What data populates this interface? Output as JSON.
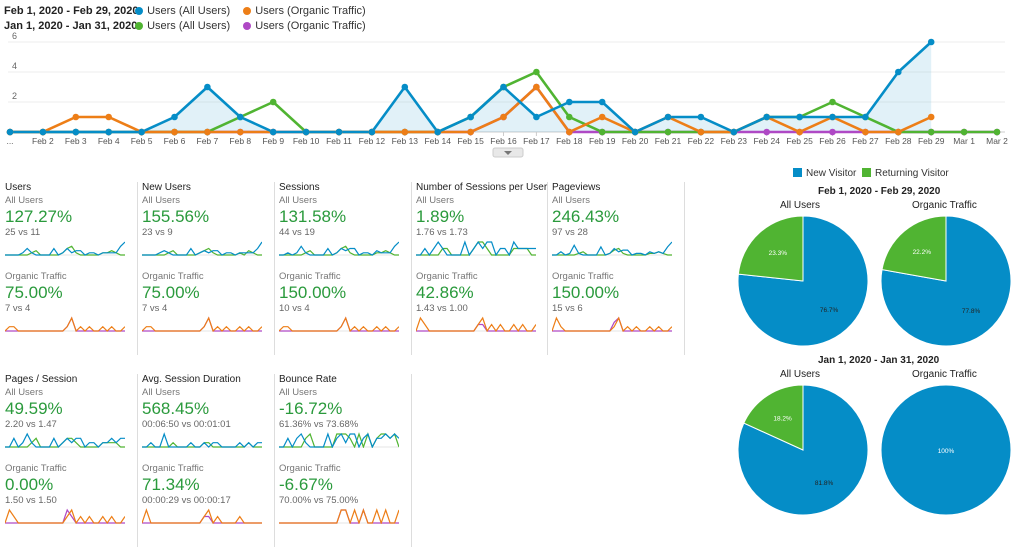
{
  "colors": {
    "blue": "#058dc7",
    "orange": "#ed7e17",
    "green": "#50b432",
    "purple": "#af49c5",
    "new_visitor": "#058dc7",
    "returning_visitor": "#50b432",
    "metric_value": "#2a9a3c"
  },
  "legend": [
    {
      "range": "Feb 1, 2020 - Feb 29, 2020:",
      "items": [
        {
          "label": "Users (All Users)",
          "color": "#058dc7"
        },
        {
          "label": "Users (Organic Traffic)",
          "color": "#ed7e17"
        }
      ]
    },
    {
      "range": "Jan 1, 2020 - Jan 31, 2020:",
      "items": [
        {
          "label": "Users (All Users)",
          "color": "#50b432"
        },
        {
          "label": "Users (Organic Traffic)",
          "color": "#af49c5"
        }
      ]
    }
  ],
  "chart_data": {
    "type": "line",
    "x": [
      "...",
      "Feb 2",
      "Feb 3",
      "Feb 4",
      "Feb 5",
      "Feb 6",
      "Feb 7",
      "Feb 8",
      "Feb 9",
      "Feb 10",
      "Feb 11",
      "Feb 12",
      "Feb 13",
      "Feb 14",
      "Feb 15",
      "Feb 16",
      "Feb 17",
      "Feb 18",
      "Feb 19",
      "Feb 20",
      "Feb 21",
      "Feb 22",
      "Feb 23",
      "Feb 24",
      "Feb 25",
      "Feb 26",
      "Feb 27",
      "Feb 28",
      "Feb 29",
      "Mar 1",
      "Mar 2"
    ],
    "y_ticks": [
      "6",
      "4",
      "2"
    ],
    "ylim": [
      0,
      6
    ],
    "series": [
      {
        "name": "Users (All Users)",
        "color": "#058dc7",
        "area": true,
        "values": [
          0,
          0,
          0,
          0,
          0,
          1,
          3,
          1,
          0,
          0,
          0,
          0,
          3,
          0,
          1,
          3,
          1,
          2,
          2,
          0,
          1,
          1,
          0,
          1,
          1,
          1,
          1,
          4,
          6,
          null,
          null
        ]
      },
      {
        "name": "Users (Organic Traffic)",
        "color": "#ed7e17",
        "values": [
          0,
          0,
          1,
          1,
          0,
          0,
          0,
          0,
          0,
          0,
          0,
          0,
          0,
          0,
          0,
          1,
          3,
          0,
          1,
          0,
          1,
          0,
          0,
          1,
          0,
          1,
          0,
          0,
          1,
          null,
          null
        ]
      },
      {
        "name": "Users (All Users)",
        "color": "#50b432",
        "values": [
          0,
          0,
          0,
          0,
          0,
          0,
          0,
          1,
          2,
          0,
          0,
          0,
          0,
          0,
          1,
          3,
          4,
          1,
          0,
          0,
          0,
          0,
          0,
          1,
          1,
          2,
          1,
          0,
          0,
          0,
          0
        ]
      },
      {
        "name": "Users (Organic Traffic)",
        "color": "#af49c5",
        "values": [
          0,
          0,
          0,
          0,
          0,
          0,
          0,
          0,
          0,
          0,
          0,
          0,
          0,
          0,
          0,
          1,
          3,
          0,
          0,
          0,
          0,
          0,
          0,
          0,
          0,
          0,
          0,
          0,
          0,
          0,
          0
        ]
      }
    ]
  },
  "metrics": [
    {
      "title": "Users",
      "all_seg": "All Users",
      "all_value": "127.27%",
      "all_cmp": "25 vs 11",
      "org_seg": "Organic Traffic",
      "org_value": "75.00%",
      "org_cmp": "7 vs 4",
      "spark_all": [
        [
          0,
          0,
          0,
          0,
          1,
          3,
          1,
          0,
          0,
          0,
          0,
          3,
          0,
          1,
          3,
          1,
          2,
          2,
          0,
          1,
          1,
          0,
          1,
          1,
          1,
          1,
          4,
          6
        ],
        [
          0,
          0,
          0,
          0,
          0,
          0,
          1,
          2,
          0,
          0,
          0,
          0,
          0,
          1,
          3,
          4,
          1,
          0,
          0,
          0,
          0,
          0,
          1,
          1,
          2,
          1,
          0,
          0
        ]
      ],
      "spark_org": [
        [
          0,
          1,
          1,
          0,
          0,
          0,
          0,
          0,
          0,
          0,
          0,
          0,
          0,
          0,
          1,
          3,
          0,
          1,
          0,
          1,
          0,
          0,
          1,
          0,
          1,
          0,
          0,
          1
        ],
        [
          0,
          0,
          0,
          0,
          0,
          0,
          0,
          0,
          0,
          0,
          0,
          0,
          0,
          0,
          1,
          3,
          0,
          0,
          0,
          0,
          0,
          0,
          0,
          0,
          0,
          0,
          0,
          0
        ]
      ]
    },
    {
      "title": "New Users",
      "all_seg": "All Users",
      "all_value": "155.56%",
      "all_cmp": "23 vs 9",
      "org_seg": "Organic Traffic",
      "org_value": "75.00%",
      "org_cmp": "7 vs 4",
      "spark_all": [
        [
          0,
          0,
          0,
          0,
          1,
          2,
          1,
          0,
          0,
          0,
          0,
          3,
          0,
          1,
          2,
          1,
          2,
          2,
          0,
          1,
          1,
          0,
          1,
          1,
          1,
          1,
          3,
          6
        ],
        [
          0,
          0,
          0,
          0,
          0,
          0,
          1,
          2,
          0,
          0,
          0,
          0,
          0,
          1,
          2,
          3,
          1,
          0,
          0,
          0,
          0,
          0,
          1,
          0,
          2,
          1,
          0,
          0
        ]
      ],
      "spark_org": [
        [
          0,
          1,
          1,
          0,
          0,
          0,
          0,
          0,
          0,
          0,
          0,
          0,
          0,
          0,
          1,
          3,
          0,
          1,
          0,
          1,
          0,
          0,
          1,
          0,
          1,
          0,
          0,
          1
        ],
        [
          0,
          0,
          0,
          0,
          0,
          0,
          0,
          0,
          0,
          0,
          0,
          0,
          0,
          0,
          1,
          3,
          0,
          0,
          0,
          0,
          0,
          0,
          0,
          0,
          0,
          0,
          0,
          0
        ]
      ]
    },
    {
      "title": "Sessions",
      "all_seg": "All Users",
      "all_value": "131.58%",
      "all_cmp": "44 vs 19",
      "org_seg": "Organic Traffic",
      "org_value": "150.00%",
      "org_cmp": "10 vs 4",
      "spark_all": [
        [
          0,
          0,
          1,
          0,
          1,
          4,
          1,
          0,
          0,
          0,
          0,
          3,
          0,
          1,
          3,
          2,
          3,
          3,
          0,
          1,
          1,
          0,
          2,
          1,
          1,
          1,
          4,
          6
        ],
        [
          0,
          0,
          0,
          0,
          0,
          0,
          1,
          2,
          0,
          0,
          0,
          0,
          0,
          1,
          3,
          4,
          1,
          0,
          0,
          0,
          0,
          0,
          1,
          1,
          2,
          1,
          0,
          0
        ]
      ],
      "spark_org": [
        [
          0,
          1,
          1,
          0,
          0,
          0,
          0,
          0,
          0,
          0,
          0,
          0,
          0,
          0,
          1,
          3,
          0,
          1,
          0,
          1,
          0,
          0,
          1,
          0,
          1,
          0,
          0,
          1
        ],
        [
          0,
          0,
          0,
          0,
          0,
          0,
          0,
          0,
          0,
          0,
          0,
          0,
          0,
          0,
          1,
          3,
          0,
          0,
          0,
          0,
          0,
          0,
          0,
          0,
          0,
          0,
          0,
          0
        ]
      ]
    },
    {
      "title": "Number of Sessions per User",
      "all_seg": "All Users",
      "all_value": "1.89%",
      "all_cmp": "1.76 vs 1.73",
      "org_seg": "Organic Traffic",
      "org_value": "42.86%",
      "org_cmp": "1.43 vs 1.00",
      "spark_all": [
        [
          0,
          0,
          1,
          0,
          1,
          2,
          1,
          0,
          0,
          0,
          0,
          2,
          0,
          1,
          2,
          1,
          2,
          2,
          0,
          1,
          1,
          0,
          2,
          1,
          1,
          1,
          1,
          1
        ],
        [
          0,
          0,
          0,
          0,
          0,
          0,
          1,
          1,
          0,
          0,
          0,
          0,
          0,
          1,
          2,
          2,
          1,
          0,
          0,
          0,
          0,
          0,
          1,
          1,
          1,
          1,
          0,
          0
        ]
      ],
      "spark_org": [
        [
          0,
          2,
          1,
          0,
          0,
          0,
          0,
          0,
          0,
          0,
          0,
          0,
          0,
          0,
          1,
          2,
          0,
          1,
          0,
          1,
          0,
          0,
          1,
          0,
          1,
          0,
          0,
          1
        ],
        [
          0,
          0,
          0,
          0,
          0,
          0,
          0,
          0,
          0,
          0,
          0,
          0,
          0,
          0,
          1,
          1,
          0,
          0,
          0,
          0,
          0,
          0,
          0,
          0,
          0,
          0,
          0,
          0
        ]
      ]
    },
    {
      "title": "Pageviews",
      "all_seg": "All Users",
      "all_value": "246.43%",
      "all_cmp": "97 vs 28",
      "org_seg": "Organic Traffic",
      "org_value": "150.00%",
      "org_cmp": "15 vs 6",
      "spark_all": [
        [
          0,
          0,
          2,
          0,
          1,
          6,
          1,
          0,
          0,
          0,
          0,
          5,
          0,
          1,
          4,
          2,
          3,
          3,
          0,
          1,
          1,
          0,
          2,
          1,
          2,
          1,
          5,
          8
        ],
        [
          0,
          0,
          0,
          0,
          0,
          0,
          1,
          2,
          0,
          0,
          0,
          0,
          0,
          1,
          3,
          4,
          1,
          0,
          0,
          0,
          0,
          0,
          1,
          1,
          2,
          1,
          0,
          0
        ]
      ],
      "spark_org": [
        [
          0,
          3,
          1,
          0,
          0,
          0,
          0,
          0,
          0,
          0,
          0,
          0,
          0,
          0,
          1,
          3,
          0,
          1,
          0,
          1,
          0,
          0,
          1,
          0,
          1,
          0,
          0,
          1
        ],
        [
          0,
          0,
          0,
          0,
          0,
          0,
          0,
          0,
          0,
          0,
          0,
          0,
          0,
          0,
          2,
          3,
          0,
          0,
          0,
          0,
          0,
          0,
          0,
          0,
          0,
          0,
          0,
          0
        ]
      ]
    },
    {
      "title": "Pages / Session",
      "all_seg": "All Users",
      "all_value": "49.59%",
      "all_cmp": "2.20 vs 1.47",
      "org_seg": "Organic Traffic",
      "org_value": "0.00%",
      "org_cmp": "1.50 vs 1.50",
      "spark_all": [
        [
          0,
          0,
          2,
          0,
          1,
          3,
          1,
          0,
          0,
          0,
          0,
          2,
          0,
          1,
          2,
          1,
          2,
          2,
          0,
          1,
          1,
          0,
          1,
          1,
          2,
          1,
          2,
          2
        ],
        [
          0,
          0,
          0,
          0,
          0,
          0,
          1,
          2,
          0,
          0,
          0,
          0,
          0,
          1,
          2,
          2,
          1,
          0,
          0,
          0,
          0,
          0,
          1,
          1,
          1,
          1,
          0,
          0
        ]
      ],
      "spark_org": [
        [
          0,
          2,
          1,
          0,
          0,
          0,
          0,
          0,
          0,
          0,
          0,
          0,
          0,
          0,
          1,
          2,
          0,
          1,
          0,
          1,
          0,
          0,
          1,
          0,
          1,
          0,
          0,
          1
        ],
        [
          0,
          0,
          0,
          0,
          0,
          0,
          0,
          0,
          0,
          0,
          0,
          0,
          0,
          0,
          2,
          1,
          0,
          0,
          0,
          0,
          0,
          0,
          0,
          0,
          0,
          0,
          0,
          0
        ]
      ]
    },
    {
      "title": "Avg. Session Duration",
      "all_seg": "All Users",
      "all_value": "568.45%",
      "all_cmp": "00:06:50 vs 00:01:01",
      "org_seg": "Organic Traffic",
      "org_value": "71.34%",
      "org_cmp": "00:00:29 vs 00:00:17",
      "spark_all": [
        [
          0,
          0,
          1,
          0,
          0,
          3,
          0,
          0,
          0,
          0,
          0,
          1,
          0,
          0,
          1,
          0,
          1,
          1,
          0,
          0,
          0,
          0,
          1,
          0,
          1,
          0,
          1,
          1
        ],
        [
          0,
          0,
          0,
          0,
          0,
          0,
          0,
          1,
          0,
          0,
          0,
          0,
          0,
          0,
          1,
          1,
          0,
          0,
          0,
          0,
          0,
          0,
          0,
          0,
          1,
          0,
          0,
          0
        ]
      ],
      "spark_org": [
        [
          0,
          2,
          0,
          0,
          0,
          0,
          0,
          0,
          0,
          0,
          0,
          0,
          0,
          0,
          1,
          2,
          0,
          1,
          0,
          0,
          0,
          0,
          1,
          0,
          0,
          0,
          0,
          0
        ],
        [
          0,
          0,
          0,
          0,
          0,
          0,
          0,
          0,
          0,
          0,
          0,
          0,
          0,
          0,
          1,
          1,
          0,
          0,
          0,
          0,
          0,
          0,
          0,
          0,
          0,
          0,
          0,
          0
        ]
      ]
    },
    {
      "title": "Bounce Rate",
      "all_seg": "All Users",
      "all_value": "-16.72%",
      "all_cmp": "61.36% vs 73.68%",
      "org_seg": "Organic Traffic",
      "org_value": "-6.67%",
      "org_cmp": "70.00% vs 75.00%",
      "spark_all": [
        [
          0,
          0,
          2,
          0,
          2,
          3,
          1,
          0,
          0,
          0,
          0,
          3,
          0,
          2,
          3,
          1,
          3,
          3,
          0,
          2,
          3,
          0,
          2,
          2,
          3,
          2,
          3,
          2
        ],
        [
          0,
          0,
          0,
          0,
          0,
          0,
          2,
          3,
          0,
          0,
          0,
          0,
          0,
          3,
          3,
          3,
          2,
          0,
          3,
          0,
          3,
          0,
          2,
          3,
          3,
          2,
          3,
          0
        ]
      ],
      "spark_org": [
        [
          0,
          0,
          0,
          0,
          0,
          0,
          0,
          0,
          0,
          0,
          0,
          0,
          0,
          0,
          3,
          3,
          0,
          3,
          0,
          3,
          0,
          0,
          3,
          0,
          3,
          0,
          0,
          3
        ],
        [
          0,
          0,
          0,
          0,
          0,
          0,
          0,
          0,
          0,
          0,
          0,
          0,
          0,
          0,
          3,
          3,
          0,
          0,
          0,
          3,
          0,
          0,
          0,
          0,
          0,
          0,
          0,
          0
        ]
      ]
    }
  ],
  "pie_legend": [
    {
      "label": "New Visitor",
      "color": "#058dc7"
    },
    {
      "label": "Returning Visitor",
      "color": "#50b432"
    }
  ],
  "pies": [
    {
      "range": "Feb 1, 2020 - Feb 29, 2020",
      "charts": [
        {
          "title": "All Users",
          "new": 76.7,
          "returning": 23.3,
          "new_label": "76.7%",
          "returning_label": "23.3%"
        },
        {
          "title": "Organic Traffic",
          "new": 77.8,
          "returning": 22.2,
          "new_label": "77.8%",
          "returning_label": "22.2%"
        }
      ]
    },
    {
      "range": "Jan 1, 2020 - Jan 31, 2020",
      "charts": [
        {
          "title": "All Users",
          "new": 81.8,
          "returning": 18.2,
          "new_label": "81.8%",
          "returning_label": "18.2%"
        },
        {
          "title": "Organic Traffic",
          "new": 100,
          "returning": 0,
          "new_label": "100%",
          "returning_label": ""
        }
      ]
    }
  ]
}
